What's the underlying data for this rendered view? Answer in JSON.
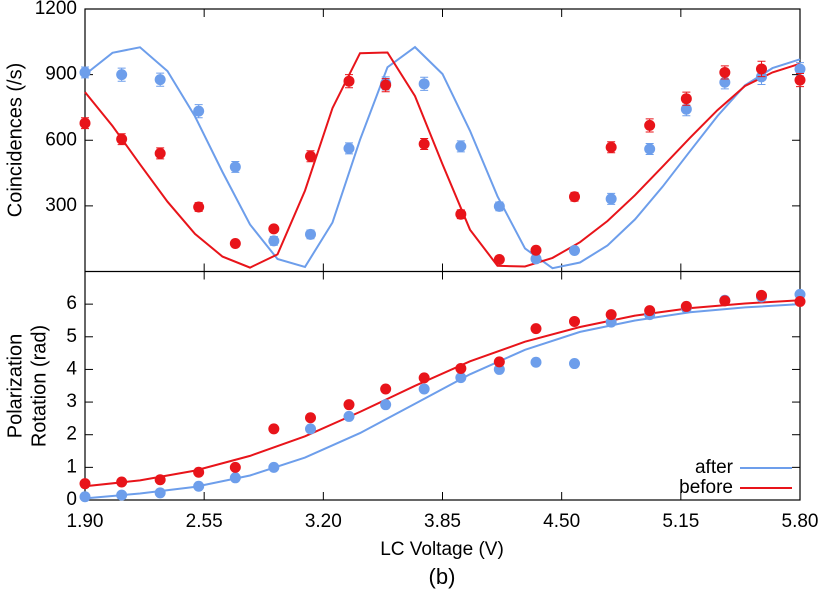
{
  "caption": "(b)",
  "chart_data": [
    {
      "type": "scatter",
      "ylabel": "Coincidences (/s)",
      "xlim": [
        1.9,
        5.8
      ],
      "xticks": [
        1.9,
        2.55,
        3.2,
        3.85,
        4.5,
        5.15,
        5.8
      ],
      "ylim": [
        0,
        1200
      ],
      "yticks": [
        300,
        600,
        900,
        1200
      ],
      "series": [
        {
          "mode": "line",
          "color": "#6d9eeb",
          "x": [
            1.9,
            2.05,
            2.2,
            2.35,
            2.5,
            2.65,
            2.8,
            2.95,
            3.1,
            3.25,
            3.4,
            3.55,
            3.7,
            3.85,
            4.0,
            4.15,
            4.3,
            4.45,
            4.6,
            4.75,
            4.9,
            5.05,
            5.2,
            5.35,
            5.5,
            5.65,
            5.8
          ],
          "values": [
            900,
            1000,
            1025,
            916,
            709,
            455,
            215,
            57,
            21,
            224,
            602,
            934,
            1026,
            903,
            643,
            344,
            105,
            15,
            41,
            119,
            238,
            387,
            550,
            711,
            851,
            930,
            970
          ]
        },
        {
          "mode": "line",
          "color": "#e8141a",
          "x": [
            1.9,
            2.05,
            2.2,
            2.35,
            2.5,
            2.65,
            2.8,
            2.95,
            3.1,
            3.25,
            3.4,
            3.55,
            3.7,
            3.85,
            4.0,
            4.15,
            4.3,
            4.45,
            4.6,
            4.75,
            4.9,
            5.05,
            5.2,
            5.35,
            5.5,
            5.65,
            5.8
          ],
          "values": [
            820,
            665,
            490,
            319,
            172,
            68,
            18,
            78,
            370,
            747,
            998,
            1001,
            802,
            490,
            191,
            26,
            23,
            62,
            134,
            231,
            349,
            479,
            611,
            738,
            848,
            910,
            950
          ]
        },
        {
          "mode": "markers",
          "color": "#6d9eeb",
          "x": [
            1.9,
            2.1,
            2.31,
            2.52,
            2.72,
            2.93,
            3.13,
            3.34,
            3.54,
            3.75,
            3.95,
            4.16,
            4.36,
            4.57,
            4.77,
            4.98,
            5.18,
            5.39,
            5.59,
            5.8
          ],
          "values": [
            910,
            900,
            877,
            733,
            478,
            140,
            170,
            563,
            860,
            858,
            572,
            298,
            58,
            96,
            332,
            560,
            742,
            865,
            890,
            925
          ],
          "errors": [
            25,
            30,
            30,
            30,
            25,
            20,
            20,
            25,
            30,
            30,
            25,
            20,
            15,
            15,
            25,
            25,
            30,
            30,
            35,
            30
          ]
        },
        {
          "mode": "markers",
          "color": "#e8141a",
          "x": [
            1.9,
            2.1,
            2.31,
            2.52,
            2.72,
            2.93,
            3.13,
            3.34,
            3.54,
            3.75,
            3.95,
            4.16,
            4.36,
            4.57,
            4.77,
            4.98,
            5.18,
            5.39,
            5.59,
            5.8
          ],
          "values": [
            678,
            605,
            540,
            295,
            128,
            195,
            527,
            870,
            852,
            583,
            262,
            55,
            97,
            342,
            568,
            668,
            790,
            910,
            926,
            875
          ],
          "errors": [
            25,
            25,
            25,
            20,
            15,
            15,
            25,
            30,
            30,
            25,
            20,
            15,
            15,
            20,
            25,
            30,
            30,
            30,
            35,
            30
          ]
        }
      ]
    },
    {
      "type": "scatter",
      "xlabel": "LC Voltage (V)",
      "ylabel": [
        "Polarization",
        "Rotation (rad)"
      ],
      "xlim": [
        1.9,
        5.8
      ],
      "xticks": [
        {
          "value": 1.9,
          "label": "1.90"
        },
        {
          "value": 2.55,
          "label": "2.55"
        },
        {
          "value": 3.2,
          "label": "3.20"
        },
        {
          "value": 3.85,
          "label": "3.85"
        },
        {
          "value": 4.5,
          "label": "4.50"
        },
        {
          "value": 5.15,
          "label": "5.15"
        },
        {
          "value": 5.8,
          "label": "5.80"
        }
      ],
      "ylim": [
        0,
        7
      ],
      "yticks": [
        0,
        1,
        2,
        3,
        4,
        5,
        6
      ],
      "legend": "lower right",
      "series": [
        {
          "name": "after",
          "mode": "line",
          "color": "#6d9eeb",
          "x": [
            1.9,
            2.2,
            2.5,
            2.8,
            3.1,
            3.4,
            3.7,
            4.0,
            4.3,
            4.6,
            4.9,
            5.2,
            5.5,
            5.8
          ],
          "values": [
            0.05,
            0.2,
            0.4,
            0.75,
            1.3,
            2.05,
            2.95,
            3.85,
            4.6,
            5.15,
            5.5,
            5.75,
            5.9,
            6.0
          ]
        },
        {
          "name": "before",
          "mode": "line",
          "color": "#e8141a",
          "x": [
            1.9,
            2.2,
            2.5,
            2.8,
            3.1,
            3.4,
            3.7,
            4.0,
            4.3,
            4.6,
            4.9,
            5.2,
            5.5,
            5.8
          ],
          "values": [
            0.42,
            0.6,
            0.9,
            1.35,
            1.95,
            2.7,
            3.5,
            4.25,
            4.85,
            5.3,
            5.65,
            5.88,
            6.02,
            6.12
          ]
        },
        {
          "mode": "markers",
          "color": "#6d9eeb",
          "x": [
            1.9,
            2.1,
            2.31,
            2.52,
            2.72,
            2.93,
            3.13,
            3.34,
            3.54,
            3.75,
            3.95,
            4.16,
            4.36,
            4.57,
            4.77,
            4.98,
            5.18,
            5.39,
            5.59,
            5.8
          ],
          "values": [
            0.1,
            0.15,
            0.22,
            0.42,
            0.68,
            1.0,
            2.18,
            2.56,
            2.92,
            3.4,
            3.75,
            4.0,
            4.22,
            4.18,
            5.45,
            5.68,
            5.88,
            6.12,
            6.22,
            6.3
          ]
        },
        {
          "mode": "markers",
          "color": "#e8141a",
          "x": [
            1.9,
            2.1,
            2.31,
            2.52,
            2.72,
            2.93,
            3.13,
            3.34,
            3.54,
            3.75,
            3.95,
            4.16,
            4.36,
            4.57,
            4.77,
            4.98,
            5.18,
            5.39,
            5.59,
            5.8
          ],
          "values": [
            0.5,
            0.55,
            0.62,
            0.85,
            1.0,
            2.18,
            2.52,
            2.92,
            3.4,
            3.74,
            4.03,
            4.23,
            5.25,
            5.47,
            5.68,
            5.8,
            5.93,
            6.1,
            6.27,
            6.08
          ]
        }
      ]
    }
  ]
}
